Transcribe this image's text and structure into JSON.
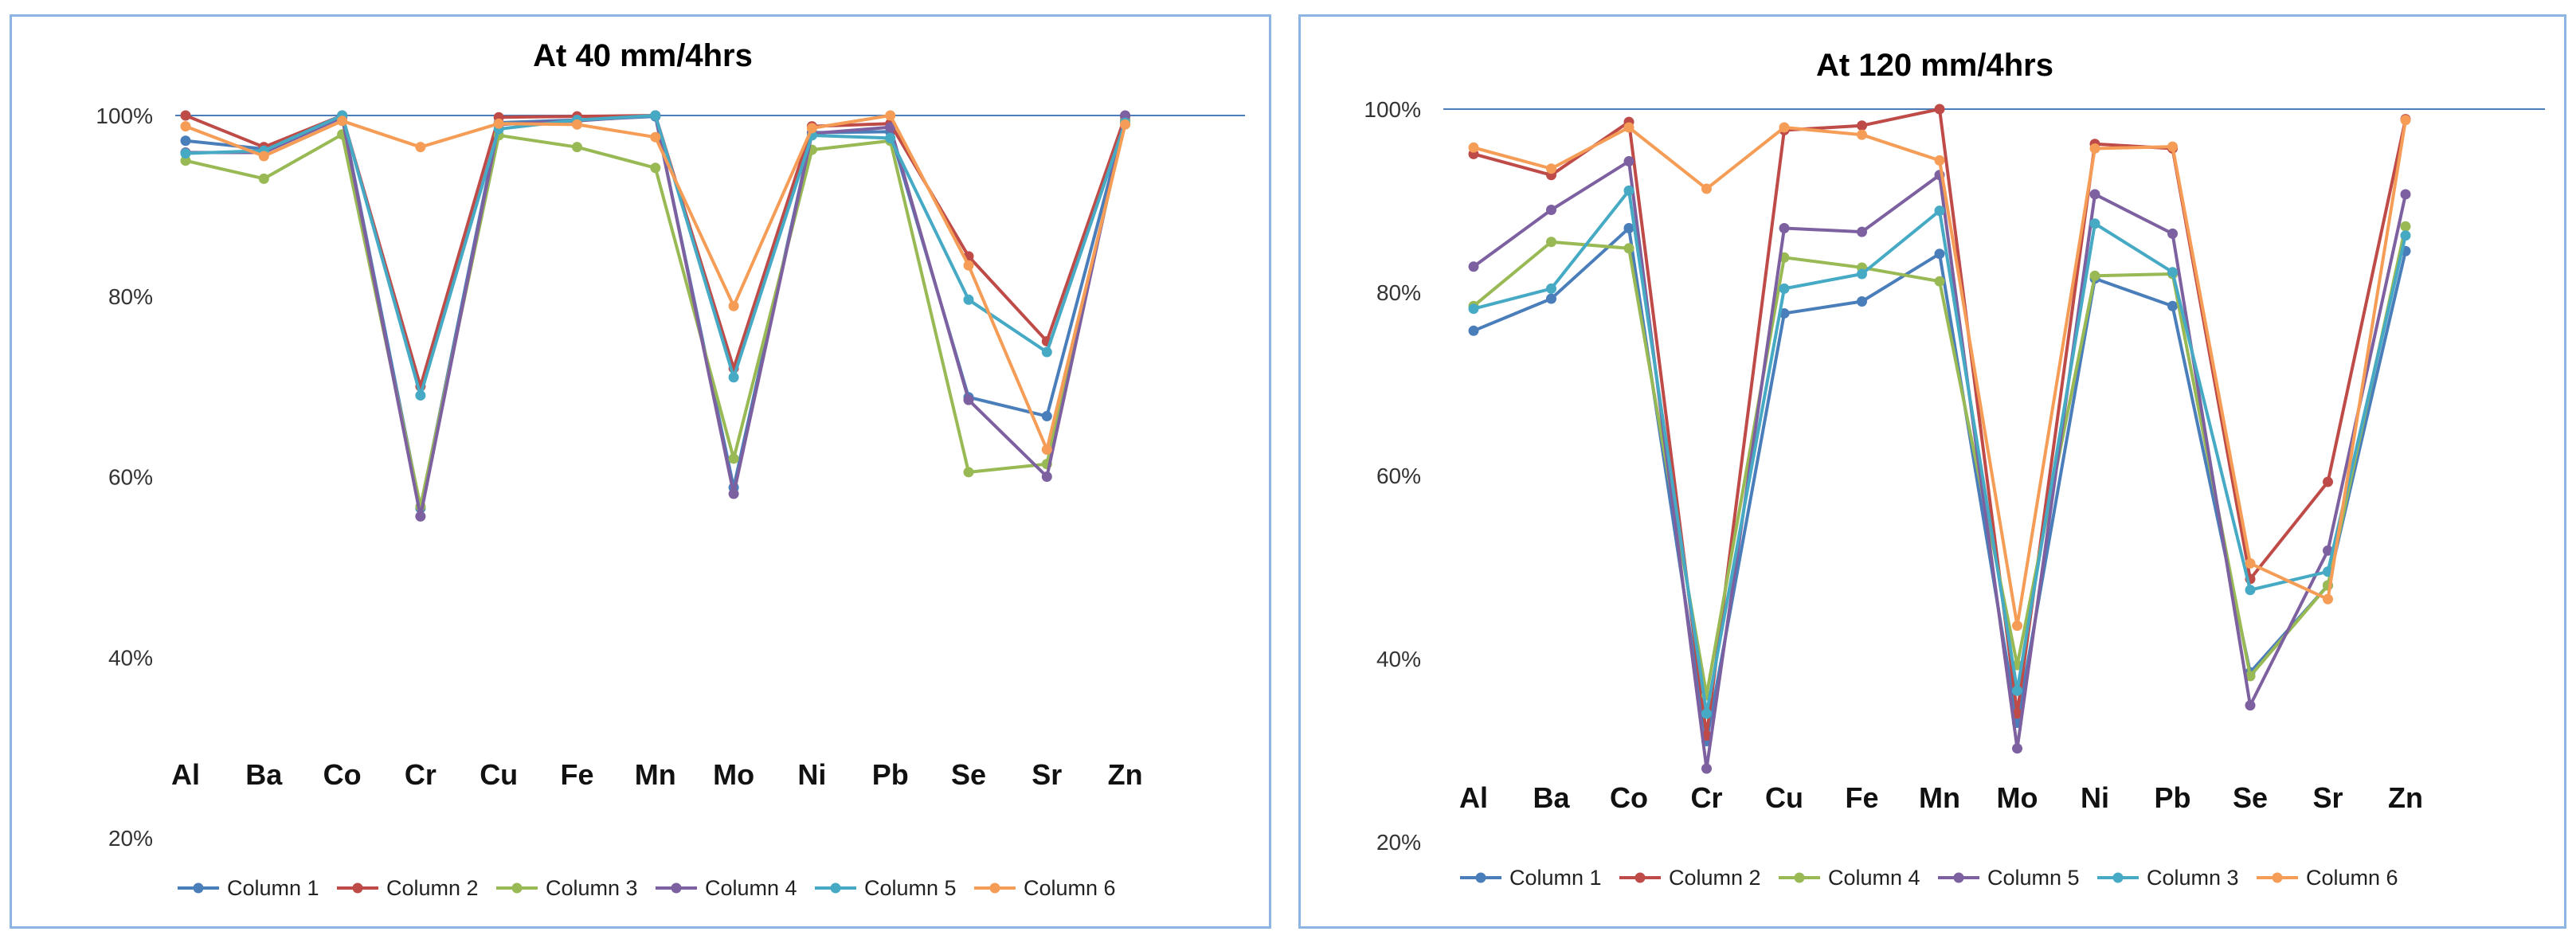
{
  "chart_data": [
    {
      "type": "line",
      "title": "At 40 mm/4hrs",
      "xlabel": "",
      "ylabel": "",
      "ylim": [
        20,
        100
      ],
      "yticks": [
        "20%",
        "40%",
        "60%",
        "80%",
        "100%"
      ],
      "categories": [
        "Al",
        "Ba",
        "Co",
        "Cr",
        "Cu",
        "Fe",
        "Mn",
        "Mo",
        "Ni",
        "Pb",
        "Se",
        "Sr",
        "Zn"
      ],
      "series": [
        {
          "name": "Column 1",
          "color": "#4a7ebb",
          "values": [
            97.2,
            96.3,
            99.9,
            56.5,
            99.2,
            99.5,
            99.9,
            58.8,
            98.1,
            98.2,
            68.8,
            66.7,
            99.5
          ]
        },
        {
          "name": "Column 2",
          "color": "#be4b48",
          "values": [
            100,
            96.5,
            100,
            70.0,
            99.8,
            99.9,
            100,
            72.0,
            98.8,
            99.1,
            84.4,
            75.0,
            99.9
          ]
        },
        {
          "name": "Column 3",
          "color": "#98b954",
          "values": [
            95.0,
            93.0,
            97.9,
            56.7,
            97.8,
            96.5,
            94.2,
            62.0,
            96.2,
            97.2,
            60.5,
            61.4,
            99.4
          ]
        },
        {
          "name": "Column 4",
          "color": "#7d60a0",
          "values": [
            95.9,
            95.9,
            99.8,
            55.6,
            99.0,
            99.4,
            100,
            58.1,
            98.0,
            98.7,
            68.5,
            60.0,
            100
          ]
        },
        {
          "name": "Column 5",
          "color": "#46aac5",
          "values": [
            95.8,
            96.1,
            100,
            69.0,
            98.5,
            99.5,
            100,
            71.0,
            97.8,
            97.5,
            79.6,
            73.8,
            99.2
          ]
        },
        {
          "name": "Column 6",
          "color": "#f59d56",
          "values": [
            98.8,
            95.5,
            99.4,
            96.5,
            99.1,
            99.0,
            97.6,
            78.9,
            98.6,
            100,
            83.4,
            63.0,
            99.0
          ]
        }
      ]
    },
    {
      "type": "line",
      "title": "At 120 mm/4hrs",
      "xlabel": "",
      "ylabel": "",
      "ylim": [
        20,
        100
      ],
      "yticks": [
        "20%",
        "40%",
        "60%",
        "80%",
        "100%"
      ],
      "categories": [
        "Al",
        "Ba",
        "Co",
        "Cr",
        "Cu",
        "Fe",
        "Mn",
        "Mo",
        "Ni",
        "Pb",
        "Se",
        "Sr",
        "Zn"
      ],
      "series": [
        {
          "name": "Column 1",
          "color": "#4a7ebb",
          "values": [
            75.8,
            79.3,
            87.0,
            31.0,
            77.7,
            79.0,
            84.2,
            33.0,
            81.5,
            78.5,
            38.5,
            48.0,
            84.5
          ]
        },
        {
          "name": "Column 2",
          "color": "#be4b48",
          "values": [
            95.1,
            92.8,
            98.6,
            31.6,
            97.7,
            98.2,
            100,
            34.0,
            96.2,
            95.7,
            48.7,
            59.3,
            98.9
          ]
        },
        {
          "name": "Column 4",
          "color": "#98b954",
          "values": [
            78.5,
            85.5,
            84.8,
            36.0,
            83.8,
            82.7,
            81.2,
            39.3,
            81.8,
            82.0,
            38.1,
            48.0,
            87.2
          ]
        },
        {
          "name": "Column 5",
          "color": "#7d60a0",
          "values": [
            82.8,
            89.0,
            94.3,
            28.0,
            87.0,
            86.6,
            92.8,
            30.2,
            90.7,
            86.4,
            34.9,
            51.8,
            90.7
          ]
        },
        {
          "name": "Column 3",
          "color": "#46aac5",
          "values": [
            78.2,
            80.4,
            91.1,
            34.0,
            80.4,
            82.0,
            88.9,
            36.5,
            87.5,
            82.2,
            47.5,
            49.5,
            86.2
          ]
        },
        {
          "name": "Column 6",
          "color": "#f59d56",
          "values": [
            95.8,
            93.5,
            98.0,
            91.3,
            98.0,
            97.2,
            94.4,
            43.6,
            95.7,
            95.9,
            50.4,
            46.5,
            98.8
          ]
        }
      ]
    }
  ]
}
